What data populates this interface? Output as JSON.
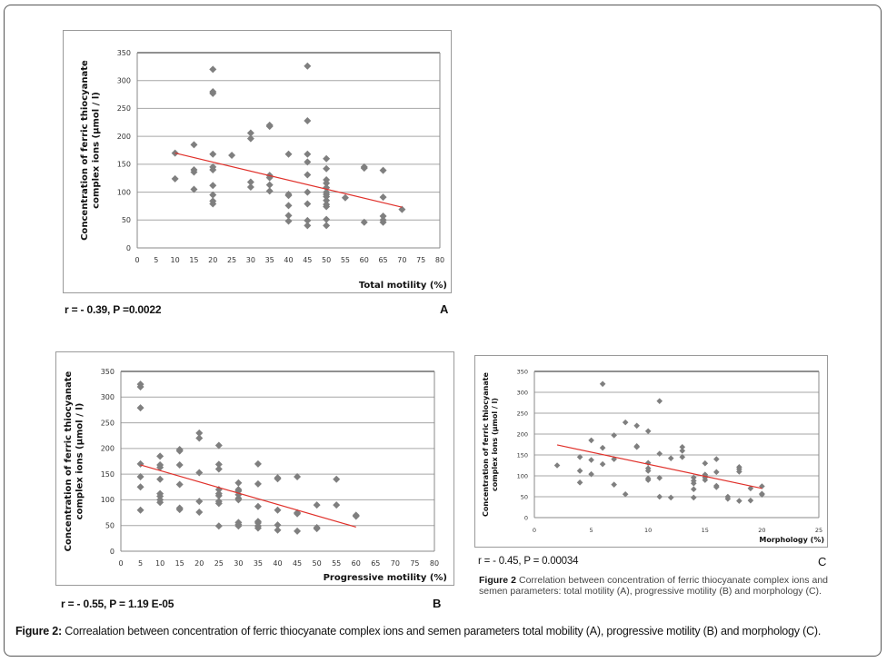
{
  "figure": {
    "main_caption_label": "Figure 2:",
    "main_caption_text": " Correalation between concentration of ferric thiocyanate complex ions and semen parameters total mobility (A), progressive motility (B) and morphology (C).",
    "inset_caption_label": "Figure 2",
    "inset_caption_text": " Correlation between concentration of ferric thiocyanate complex ions and semen parameters: total motility (A), progressive motility (B) and morphology (C)."
  },
  "colors": {
    "point": "#7f7f7f",
    "trend": "#e0302a",
    "grid": "#a6a6a6"
  },
  "panels": [
    {
      "letter": "A",
      "stat": "r = - 0.39, P =0.0022"
    },
    {
      "letter": "B",
      "stat": "r = - 0.55, P = 1.19 E-05"
    },
    {
      "letter": "C",
      "stat": "r = - 0.45, P = 0.00034"
    }
  ],
  "chart_data": [
    {
      "type": "scatter",
      "panel": "A",
      "title": "",
      "xlabel": "Total motility (%)",
      "ylabel": "Concentration of ferric thiocyanate complex ions (µmol / l)",
      "xlim": [
        0,
        80
      ],
      "ylim": [
        0,
        350
      ],
      "xticks": [
        0,
        5,
        10,
        15,
        20,
        25,
        30,
        35,
        40,
        45,
        50,
        55,
        60,
        65,
        70,
        75,
        80
      ],
      "yticks": [
        0,
        50,
        100,
        150,
        200,
        250,
        300,
        350
      ],
      "grid": "horizontal",
      "points": [
        [
          10,
          170
        ],
        [
          10,
          124
        ],
        [
          15,
          185
        ],
        [
          15,
          140
        ],
        [
          15,
          136
        ],
        [
          15,
          105
        ],
        [
          20,
          320
        ],
        [
          20,
          280
        ],
        [
          20,
          277
        ],
        [
          20,
          168
        ],
        [
          20,
          145
        ],
        [
          20,
          140
        ],
        [
          20,
          112
        ],
        [
          20,
          95
        ],
        [
          20,
          84
        ],
        [
          20,
          79
        ],
        [
          25,
          166
        ],
        [
          30,
          206
        ],
        [
          30,
          196
        ],
        [
          30,
          118
        ],
        [
          30,
          109
        ],
        [
          35,
          220
        ],
        [
          35,
          218
        ],
        [
          35,
          130
        ],
        [
          35,
          126
        ],
        [
          35,
          113
        ],
        [
          35,
          102
        ],
        [
          40,
          168
        ],
        [
          40,
          96
        ],
        [
          40,
          94
        ],
        [
          40,
          76
        ],
        [
          40,
          58
        ],
        [
          40,
          48
        ],
        [
          45,
          326
        ],
        [
          45,
          228
        ],
        [
          45,
          168
        ],
        [
          45,
          154
        ],
        [
          45,
          131
        ],
        [
          45,
          100
        ],
        [
          45,
          79
        ],
        [
          45,
          49
        ],
        [
          45,
          40
        ],
        [
          50,
          160
        ],
        [
          50,
          142
        ],
        [
          50,
          122
        ],
        [
          50,
          116
        ],
        [
          50,
          108
        ],
        [
          50,
          100
        ],
        [
          50,
          96
        ],
        [
          50,
          92
        ],
        [
          50,
          85
        ],
        [
          50,
          78
        ],
        [
          50,
          74
        ],
        [
          50,
          51
        ],
        [
          50,
          40
        ],
        [
          55,
          90
        ],
        [
          60,
          145
        ],
        [
          60,
          143
        ],
        [
          60,
          46
        ],
        [
          65,
          139
        ],
        [
          65,
          91
        ],
        [
          65,
          57
        ],
        [
          65,
          50
        ],
        [
          65,
          46
        ],
        [
          70,
          69
        ]
      ],
      "trendline": {
        "x": [
          10,
          70
        ],
        "y": [
          170,
          73
        ]
      },
      "annotation": "r = - 0.39, P =0.0022"
    },
    {
      "type": "scatter",
      "panel": "B",
      "title": "",
      "xlabel": "Progressive motility (%)",
      "ylabel": "Concentration of ferric thiocyanate complex ions (µmol / l)",
      "xlim": [
        0,
        80
      ],
      "ylim": [
        0,
        350
      ],
      "xticks": [
        0,
        5,
        10,
        15,
        20,
        25,
        30,
        35,
        40,
        45,
        50,
        55,
        60,
        65,
        70,
        75,
        80
      ],
      "yticks": [
        0,
        50,
        100,
        150,
        200,
        250,
        300,
        350
      ],
      "grid": "horizontal",
      "points": [
        [
          5,
          325
        ],
        [
          5,
          320
        ],
        [
          5,
          279
        ],
        [
          5,
          170
        ],
        [
          5,
          145
        ],
        [
          5,
          125
        ],
        [
          5,
          80
        ],
        [
          10,
          185
        ],
        [
          10,
          168
        ],
        [
          10,
          163
        ],
        [
          10,
          140
        ],
        [
          10,
          112
        ],
        [
          10,
          107
        ],
        [
          10,
          100
        ],
        [
          10,
          95
        ],
        [
          15,
          198
        ],
        [
          15,
          195
        ],
        [
          15,
          168
        ],
        [
          15,
          130
        ],
        [
          15,
          84
        ],
        [
          15,
          81
        ],
        [
          20,
          230
        ],
        [
          20,
          220
        ],
        [
          20,
          153
        ],
        [
          20,
          97
        ],
        [
          20,
          76
        ],
        [
          25,
          206
        ],
        [
          25,
          169
        ],
        [
          25,
          160
        ],
        [
          25,
          120
        ],
        [
          25,
          112
        ],
        [
          25,
          108
        ],
        [
          25,
          97
        ],
        [
          25,
          93
        ],
        [
          25,
          49
        ],
        [
          30,
          133
        ],
        [
          30,
          120
        ],
        [
          30,
          117
        ],
        [
          30,
          110
        ],
        [
          30,
          103
        ],
        [
          30,
          100
        ],
        [
          30,
          56
        ],
        [
          30,
          52
        ],
        [
          30,
          49
        ],
        [
          35,
          170
        ],
        [
          35,
          131
        ],
        [
          35,
          87
        ],
        [
          35,
          58
        ],
        [
          35,
          55
        ],
        [
          35,
          49
        ],
        [
          35,
          45
        ],
        [
          40,
          143
        ],
        [
          40,
          141
        ],
        [
          40,
          80
        ],
        [
          40,
          51
        ],
        [
          40,
          41
        ],
        [
          45,
          145
        ],
        [
          45,
          75
        ],
        [
          45,
          73
        ],
        [
          45,
          39
        ],
        [
          50,
          90
        ],
        [
          50,
          46
        ],
        [
          50,
          44
        ],
        [
          55,
          140
        ],
        [
          55,
          90
        ],
        [
          60,
          70
        ],
        [
          60,
          68
        ]
      ],
      "trendline": {
        "x": [
          5,
          60
        ],
        "y": [
          168,
          47
        ]
      },
      "annotation": "r = - 0.55, P = 1.19 E-05"
    },
    {
      "type": "scatter",
      "panel": "C",
      "title": "",
      "xlabel": "Morphology (%)",
      "ylabel": "Concentration of ferric thiocyanate complex ions (µmol / l)",
      "xlim": [
        0,
        25
      ],
      "ylim": [
        0,
        350
      ],
      "xticks": [
        0,
        5,
        10,
        15,
        20,
        25
      ],
      "yticks": [
        0,
        50,
        100,
        150,
        200,
        250,
        300,
        350
      ],
      "grid": "horizontal",
      "points": [
        [
          2,
          125
        ],
        [
          4,
          145
        ],
        [
          4,
          112
        ],
        [
          4,
          84
        ],
        [
          5,
          185
        ],
        [
          5,
          138
        ],
        [
          5,
          104
        ],
        [
          6,
          320
        ],
        [
          6,
          167
        ],
        [
          6,
          128
        ],
        [
          7,
          197
        ],
        [
          7,
          140
        ],
        [
          7,
          79
        ],
        [
          8,
          228
        ],
        [
          8,
          56
        ],
        [
          9,
          220
        ],
        [
          9,
          171
        ],
        [
          9,
          169
        ],
        [
          10,
          207
        ],
        [
          10,
          131
        ],
        [
          10,
          118
        ],
        [
          10,
          112
        ],
        [
          10,
          94
        ],
        [
          10,
          90
        ],
        [
          11,
          279
        ],
        [
          11,
          153
        ],
        [
          11,
          95
        ],
        [
          11,
          50
        ],
        [
          12,
          142
        ],
        [
          12,
          48
        ],
        [
          13,
          169
        ],
        [
          13,
          160
        ],
        [
          13,
          145
        ],
        [
          14,
          96
        ],
        [
          14,
          88
        ],
        [
          14,
          82
        ],
        [
          14,
          68
        ],
        [
          14,
          48
        ],
        [
          15,
          130
        ],
        [
          15,
          103
        ],
        [
          15,
          100
        ],
        [
          15,
          96
        ],
        [
          15,
          90
        ],
        [
          16,
          140
        ],
        [
          16,
          109
        ],
        [
          16,
          76
        ],
        [
          16,
          73
        ],
        [
          17,
          50
        ],
        [
          17,
          45
        ],
        [
          18,
          121
        ],
        [
          18,
          116
        ],
        [
          18,
          110
        ],
        [
          18,
          40
        ],
        [
          19,
          70
        ],
        [
          19,
          41
        ],
        [
          20,
          75
        ],
        [
          20,
          57
        ],
        [
          20,
          55
        ]
      ],
      "trendline": {
        "x": [
          2,
          20
        ],
        "y": [
          174,
          70
        ]
      },
      "annotation": "r = - 0.45, P = 0.00034"
    }
  ]
}
